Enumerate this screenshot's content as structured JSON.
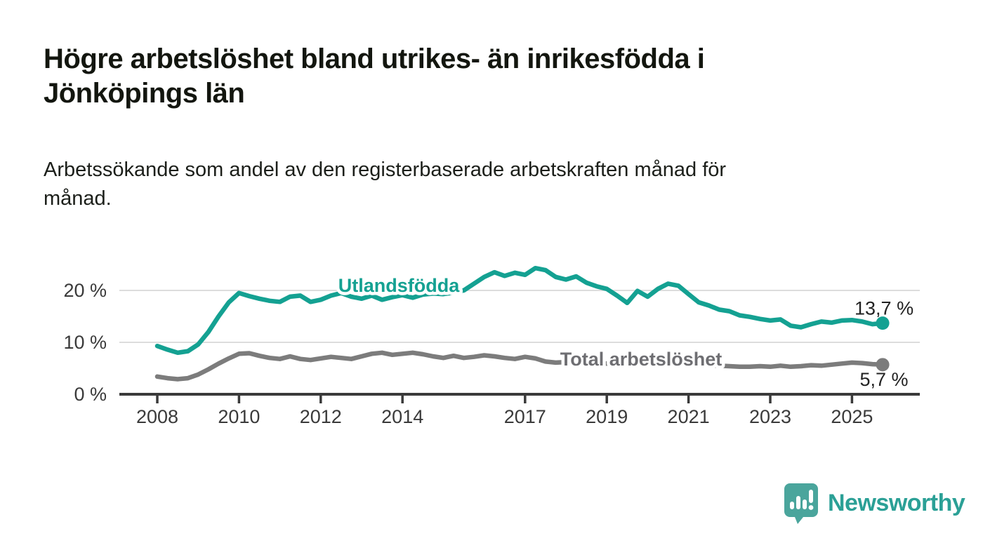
{
  "title": {
    "line1": "Högre arbetslöshet bland utrikes- än inrikesfödda i",
    "line2": "Jönköpings län"
  },
  "subtitle": {
    "line1": "Arbetssökande som andel av den registerbaserade arbetskraften månad för",
    "line2": "månad."
  },
  "branding": {
    "logo_text": "Newsworthy",
    "logo_icon": "newsworthy-speech-bubble-chart-icon",
    "icon_color": "#4aa59c",
    "text_color": "#2ba096"
  },
  "colors": {
    "accent_teal": "#14a192",
    "series_gray": "#7c7c7c",
    "gray_label": "#6e6e72",
    "axis": "#3a3a3a",
    "gridline": "#dddddd",
    "tick_text": "#3a3a3a",
    "value_text": "#222222",
    "title_text": "#13160f"
  },
  "chart_data": {
    "type": "line",
    "title": "",
    "xlabel": "",
    "ylabel": "",
    "x_start": 2008.0,
    "x_step": 0.25,
    "xlim": [
      2007.1,
      2026.7
    ],
    "ylim": [
      0,
      26
    ],
    "grid": "horizontal",
    "legend_position": "inline-labels",
    "yticks": [
      {
        "value": 0,
        "label": "0 %"
      },
      {
        "value": 10,
        "label": "10 %"
      },
      {
        "value": 20,
        "label": "20 %"
      }
    ],
    "xticks": [
      {
        "value": 2008,
        "label": "2008"
      },
      {
        "value": 2010,
        "label": "2010"
      },
      {
        "value": 2012,
        "label": "2012"
      },
      {
        "value": 2014,
        "label": "2014"
      },
      {
        "value": 2017,
        "label": "2017"
      },
      {
        "value": 2019,
        "label": "2019"
      },
      {
        "value": 2021,
        "label": "2021"
      },
      {
        "value": 2023,
        "label": "2023"
      },
      {
        "value": 2025,
        "label": "2025"
      }
    ],
    "series": [
      {
        "name": "Utlandsfödda",
        "color": "#14a192",
        "label_color": "#14a192",
        "end_label": "13,7 %",
        "end_value": 13.7,
        "values": [
          9.3,
          8.6,
          8.0,
          8.3,
          9.6,
          12.0,
          15.0,
          17.7,
          19.5,
          18.9,
          18.4,
          18.0,
          17.8,
          18.8,
          19.0,
          17.8,
          18.2,
          19.0,
          19.5,
          18.8,
          18.4,
          19.0,
          18.2,
          18.7,
          19.1,
          18.6,
          19.2,
          19.4,
          19.3,
          19.6,
          20.0,
          21.3,
          22.6,
          23.5,
          22.8,
          23.4,
          23.0,
          24.3,
          23.9,
          22.6,
          22.1,
          22.7,
          21.5,
          20.8,
          20.3,
          19.0,
          17.6,
          19.9,
          18.8,
          20.3,
          21.3,
          20.9,
          19.3,
          17.7,
          17.1,
          16.3,
          16.0,
          15.2,
          14.9,
          14.5,
          14.2,
          14.4,
          13.2,
          12.9,
          13.5,
          14.0,
          13.8,
          14.2,
          14.3,
          14.0,
          13.5,
          13.7
        ]
      },
      {
        "name": "Total arbetslöshet",
        "color": "#7c7c7c",
        "label_color": "#6e6e72",
        "end_label": "5,7 %",
        "end_value": 5.7,
        "values": [
          3.4,
          3.1,
          2.9,
          3.1,
          3.8,
          4.8,
          5.9,
          6.9,
          7.8,
          7.9,
          7.4,
          7.0,
          6.8,
          7.3,
          6.8,
          6.6,
          6.9,
          7.2,
          7.0,
          6.8,
          7.3,
          7.8,
          8.0,
          7.6,
          7.8,
          8.0,
          7.7,
          7.3,
          7.0,
          7.4,
          7.0,
          7.2,
          7.5,
          7.3,
          7.0,
          6.8,
          7.2,
          6.9,
          6.3,
          6.1,
          6.2,
          6.3,
          6.1,
          6.0,
          5.9,
          5.9,
          5.8,
          5.8,
          5.9,
          6.4,
          6.6,
          6.3,
          6.0,
          5.8,
          5.6,
          5.5,
          5.4,
          5.3,
          5.3,
          5.4,
          5.3,
          5.5,
          5.3,
          5.4,
          5.6,
          5.5,
          5.7,
          5.9,
          6.1,
          6.0,
          5.8,
          5.7
        ]
      }
    ]
  }
}
